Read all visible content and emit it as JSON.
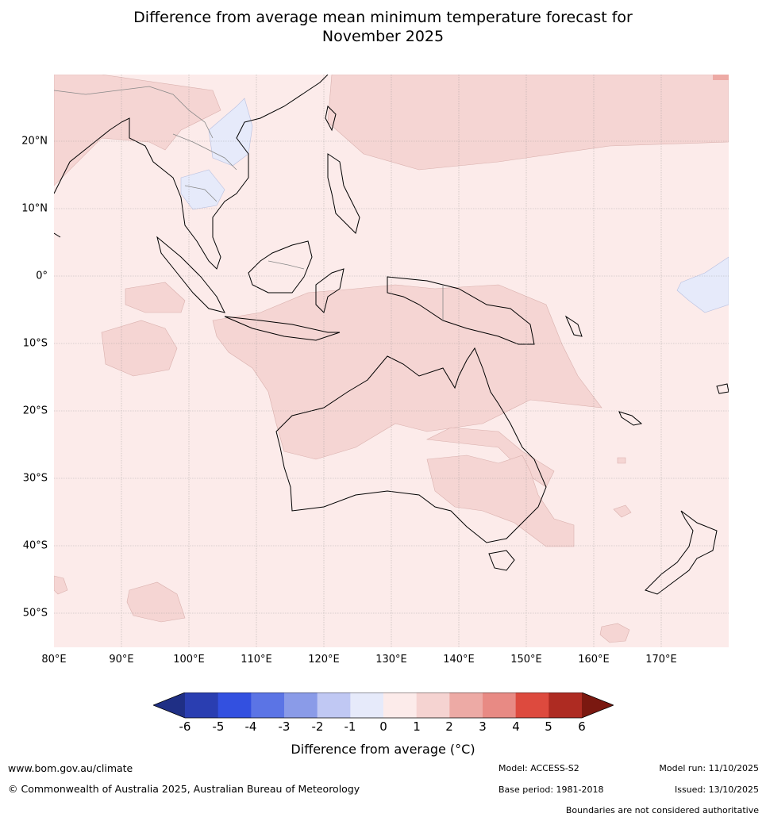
{
  "title": {
    "line1": "Difference from average mean minimum temperature forecast for",
    "line2": "November 2025"
  },
  "map": {
    "lat_labels": [
      "20°N",
      "10°N",
      "0°",
      "10°S",
      "20°S",
      "30°S",
      "40°S",
      "50°S"
    ],
    "lon_labels": [
      "80°E",
      "90°E",
      "100°E",
      "110°E",
      "120°E",
      "130°E",
      "140°E",
      "150°E",
      "160°E",
      "170°E"
    ],
    "background_color": "#fcebea",
    "coast_color": "#000000",
    "border_color": "#888888"
  },
  "colorbar": {
    "ticks": [
      "-6",
      "-5",
      "-4",
      "-3",
      "-2",
      "-1",
      "0",
      "1",
      "2",
      "3",
      "4",
      "5",
      "6"
    ],
    "colors": [
      "#1f2f85",
      "#2a3eb1",
      "#3350e0",
      "#5b74e5",
      "#8a9be8",
      "#c0c8f3",
      "#e6eafa",
      "#fcebea",
      "#f5d3d1",
      "#edaaa5",
      "#e88a84",
      "#dd4a3e",
      "#ae2b22",
      "#7a1810"
    ],
    "label": "Difference from average (°C)"
  },
  "footer": {
    "website": "www.bom.gov.au/climate",
    "copyright": "© Commonwealth of Australia 2025, Australian Bureau of Meteorology",
    "model": "Model: ACCESS-S2",
    "model_run": "Model run: 11/10/2025",
    "base_period": "Base period: 1981-2018",
    "issued": "Issued: 13/10/2025",
    "disclaimer": "Boundaries are not considered authoritative"
  }
}
